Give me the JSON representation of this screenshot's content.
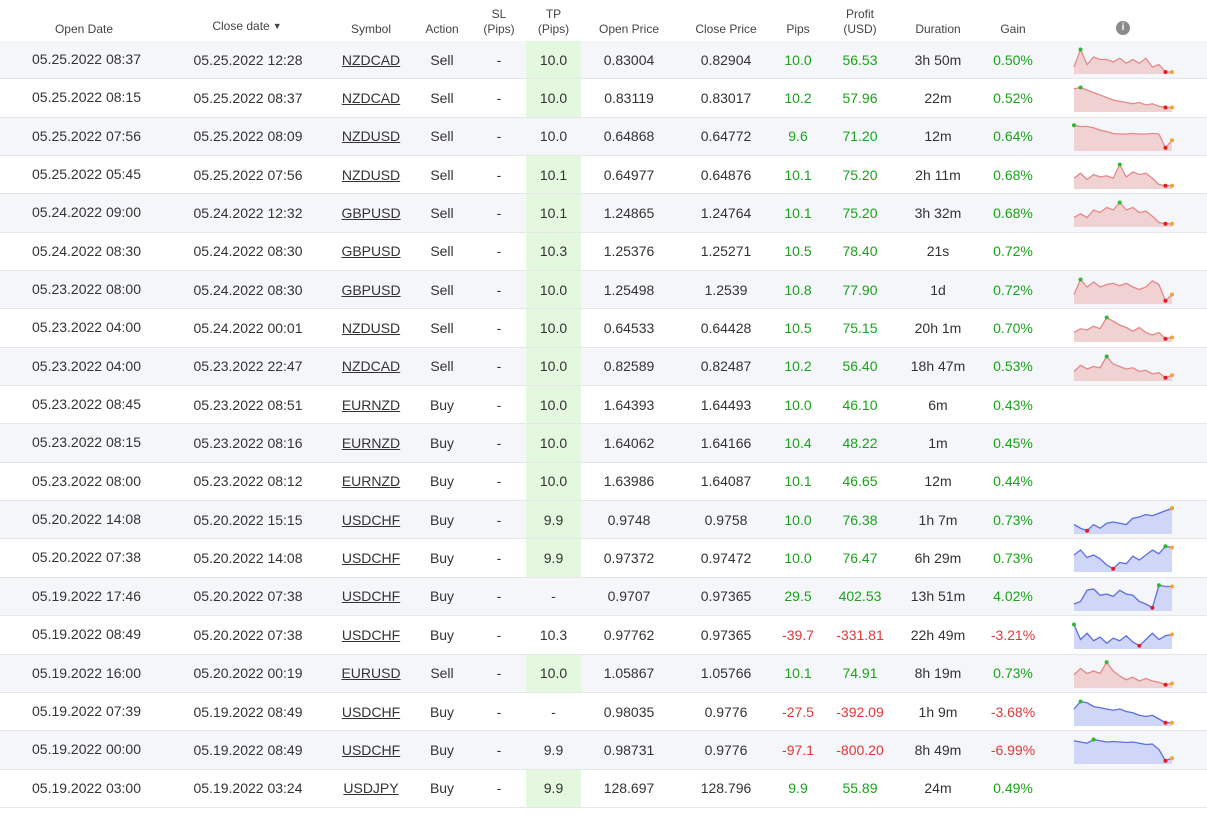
{
  "columns": {
    "open_date": "Open Date",
    "close_date": "Close date",
    "close_date_sort": "▼",
    "symbol": "Symbol",
    "action": "Action",
    "sl_line1": "SL",
    "sl_line2": "(Pips)",
    "tp_line1": "TP",
    "tp_line2": "(Pips)",
    "open_price": "Open Price",
    "close_price": "Close Price",
    "pips": "Pips",
    "profit_line1": "Profit",
    "profit_line2": "(USD)",
    "duration": "Duration",
    "gain": "Gain",
    "info_icon": "i"
  },
  "colors": {
    "positive": "#1aa31a",
    "negative": "#e03838",
    "tp_highlight": "#e3f8df",
    "sell_fill": "#f1d2d2",
    "sell_line": "#e48989",
    "buy_fill": "#cfd6f7",
    "buy_line": "#5b6fe0"
  },
  "rows": [
    {
      "open": "05.25.2022 08:37",
      "close": "05.25.2022 12:28",
      "symbol": "NZDCAD",
      "action": "Sell",
      "sl": "-",
      "tp": "10.0",
      "tp_hl": true,
      "open_price": "0.83004",
      "close_price": "0.82904",
      "pips": "10.0",
      "profit": "56.53",
      "duration": "3h 50m",
      "gain": "0.50%",
      "sign": "pos",
      "spark": [
        0.2,
        0.9,
        0.3,
        0.6,
        0.5,
        0.5,
        0.4,
        0.55,
        0.35,
        0.5,
        0.35,
        0.55,
        0.2,
        0.3,
        -0.2,
        0.0
      ]
    },
    {
      "open": "05.25.2022 08:15",
      "close": "05.25.2022 08:37",
      "symbol": "NZDCAD",
      "action": "Sell",
      "sl": "-",
      "tp": "10.0",
      "tp_hl": true,
      "open_price": "0.83119",
      "close_price": "0.83017",
      "pips": "10.2",
      "profit": "57.96",
      "duration": "22m",
      "gain": "0.52%",
      "sign": "pos",
      "spark": [
        0.85,
        0.9,
        0.8,
        0.7,
        0.6,
        0.5,
        0.4,
        0.35,
        0.3,
        0.25,
        0.3,
        0.2,
        0.25,
        0.15,
        0.1,
        0.1
      ]
    },
    {
      "open": "05.25.2022 07:56",
      "close": "05.25.2022 08:09",
      "symbol": "NZDUSD",
      "action": "Sell",
      "sl": "-",
      "tp": "10.0",
      "tp_hl": false,
      "open_price": "0.64868",
      "close_price": "0.64772",
      "pips": "9.6",
      "profit": "71.20",
      "duration": "12m",
      "gain": "0.64%",
      "sign": "pos",
      "spark": [
        0.95,
        0.9,
        0.9,
        0.85,
        0.75,
        0.7,
        0.62,
        0.6,
        0.6,
        0.62,
        0.6,
        0.6,
        0.62,
        0.6,
        0.05,
        0.35
      ]
    },
    {
      "open": "05.25.2022 05:45",
      "close": "05.25.2022 07:56",
      "symbol": "NZDUSD",
      "action": "Sell",
      "sl": "-",
      "tp": "10.1",
      "tp_hl": true,
      "open_price": "0.64977",
      "close_price": "0.64876",
      "pips": "10.1",
      "profit": "75.20",
      "duration": "2h 11m",
      "gain": "0.68%",
      "sign": "pos",
      "spark": [
        0.35,
        0.55,
        0.3,
        0.5,
        0.4,
        0.45,
        0.35,
        0.9,
        0.4,
        0.6,
        0.5,
        0.55,
        0.35,
        0.1,
        0.05,
        0.05
      ]
    },
    {
      "open": "05.24.2022 09:00",
      "close": "05.24.2022 12:32",
      "symbol": "GBPUSD",
      "action": "Sell",
      "sl": "-",
      "tp": "10.1",
      "tp_hl": true,
      "open_price": "1.24865",
      "close_price": "1.24764",
      "pips": "10.1",
      "profit": "75.20",
      "duration": "3h 32m",
      "gain": "0.68%",
      "sign": "pos",
      "spark": [
        0.3,
        0.45,
        0.3,
        0.6,
        0.5,
        0.7,
        0.6,
        0.9,
        0.6,
        0.7,
        0.5,
        0.55,
        0.35,
        0.1,
        0.05,
        0.05
      ]
    },
    {
      "open": "05.24.2022 08:30",
      "close": "05.24.2022 08:30",
      "symbol": "GBPUSD",
      "action": "Sell",
      "sl": "-",
      "tp": "10.3",
      "tp_hl": true,
      "open_price": "1.25376",
      "close_price": "1.25271",
      "pips": "10.5",
      "profit": "78.40",
      "duration": "21s",
      "gain": "0.72%",
      "sign": "pos",
      "spark": null
    },
    {
      "open": "05.23.2022 08:00",
      "close": "05.24.2022 08:30",
      "symbol": "GBPUSD",
      "action": "Sell",
      "sl": "-",
      "tp": "10.0",
      "tp_hl": true,
      "open_price": "1.25498",
      "close_price": "1.2539",
      "pips": "10.8",
      "profit": "77.90",
      "duration": "1d",
      "gain": "0.72%",
      "sign": "pos",
      "spark": [
        0.3,
        0.9,
        0.6,
        0.8,
        0.6,
        0.7,
        0.75,
        0.65,
        0.75,
        0.6,
        0.5,
        0.6,
        0.85,
        0.7,
        0.05,
        0.3
      ]
    },
    {
      "open": "05.23.2022 04:00",
      "close": "05.24.2022 00:01",
      "symbol": "NZDUSD",
      "action": "Sell",
      "sl": "-",
      "tp": "10.0",
      "tp_hl": true,
      "open_price": "0.64533",
      "close_price": "0.64428",
      "pips": "10.5",
      "profit": "75.15",
      "duration": "20h 1m",
      "gain": "0.70%",
      "sign": "pos",
      "spark": [
        0.3,
        0.45,
        0.4,
        0.55,
        0.45,
        0.9,
        0.75,
        0.6,
        0.5,
        0.35,
        0.5,
        0.3,
        0.2,
        0.3,
        0.05,
        0.1
      ]
    },
    {
      "open": "05.23.2022 04:00",
      "close": "05.23.2022 22:47",
      "symbol": "NZDCAD",
      "action": "Sell",
      "sl": "-",
      "tp": "10.0",
      "tp_hl": true,
      "open_price": "0.82589",
      "close_price": "0.82487",
      "pips": "10.2",
      "profit": "56.40",
      "duration": "18h 47m",
      "gain": "0.53%",
      "sign": "pos",
      "spark": [
        0.3,
        0.55,
        0.4,
        0.5,
        0.45,
        0.9,
        0.6,
        0.5,
        0.4,
        0.45,
        0.3,
        0.35,
        0.2,
        0.25,
        0.05,
        0.15
      ]
    },
    {
      "open": "05.23.2022 08:45",
      "close": "05.23.2022 08:51",
      "symbol": "EURNZD",
      "action": "Buy",
      "sl": "-",
      "tp": "10.0",
      "tp_hl": true,
      "open_price": "1.64393",
      "close_price": "1.64493",
      "pips": "10.0",
      "profit": "46.10",
      "duration": "6m",
      "gain": "0.43%",
      "sign": "pos",
      "spark": null
    },
    {
      "open": "05.23.2022 08:15",
      "close": "05.23.2022 08:16",
      "symbol": "EURNZD",
      "action": "Buy",
      "sl": "-",
      "tp": "10.0",
      "tp_hl": true,
      "open_price": "1.64062",
      "close_price": "1.64166",
      "pips": "10.4",
      "profit": "48.22",
      "duration": "1m",
      "gain": "0.45%",
      "sign": "pos",
      "spark": null
    },
    {
      "open": "05.23.2022 08:00",
      "close": "05.23.2022 08:12",
      "symbol": "EURNZD",
      "action": "Buy",
      "sl": "-",
      "tp": "10.0",
      "tp_hl": true,
      "open_price": "1.63986",
      "close_price": "1.64087",
      "pips": "10.1",
      "profit": "46.65",
      "duration": "12m",
      "gain": "0.44%",
      "sign": "pos",
      "spark": null
    },
    {
      "open": "05.20.2022 14:08",
      "close": "05.20.2022 15:15",
      "symbol": "USDCHF",
      "action": "Buy",
      "sl": "-",
      "tp": "9.9",
      "tp_hl": true,
      "open_price": "0.9748",
      "close_price": "0.9758",
      "pips": "10.0",
      "profit": "76.38",
      "duration": "1h 7m",
      "gain": "0.73%",
      "sign": "pos",
      "spark": [
        0.3,
        0.15,
        0.05,
        0.3,
        0.15,
        0.35,
        0.4,
        0.35,
        0.3,
        0.55,
        0.6,
        0.7,
        0.65,
        0.75,
        0.85,
        0.95
      ]
    },
    {
      "open": "05.20.2022 07:38",
      "close": "05.20.2022 14:08",
      "symbol": "USDCHF",
      "action": "Buy",
      "sl": "-",
      "tp": "9.9",
      "tp_hl": true,
      "open_price": "0.97372",
      "close_price": "0.97472",
      "pips": "10.0",
      "profit": "76.47",
      "duration": "6h 29m",
      "gain": "0.73%",
      "sign": "pos",
      "spark": [
        0.6,
        0.8,
        0.5,
        0.6,
        0.45,
        0.2,
        0.05,
        0.3,
        0.25,
        0.55,
        0.4,
        0.6,
        0.8,
        0.65,
        0.95,
        0.9
      ]
    },
    {
      "open": "05.19.2022 17:46",
      "close": "05.20.2022 07:38",
      "symbol": "USDCHF",
      "action": "Buy",
      "sl": "-",
      "tp": "-",
      "tp_hl": false,
      "open_price": "0.9707",
      "close_price": "0.97365",
      "pips": "29.5",
      "profit": "402.53",
      "duration": "13h 51m",
      "gain": "4.02%",
      "sign": "pos",
      "spark": [
        0.2,
        0.3,
        0.75,
        0.8,
        0.55,
        0.6,
        0.5,
        0.75,
        0.6,
        0.55,
        0.3,
        0.2,
        0.05,
        0.95,
        0.9,
        0.9
      ]
    },
    {
      "open": "05.19.2022 08:49",
      "close": "05.20.2022 07:38",
      "symbol": "USDCHF",
      "action": "Buy",
      "sl": "-",
      "tp": "10.3",
      "tp_hl": false,
      "open_price": "0.97762",
      "close_price": "0.97365",
      "pips": "-39.7",
      "profit": "-331.81",
      "duration": "22h 49m",
      "gain": "-3.21%",
      "sign": "neg",
      "spark": [
        0.9,
        0.3,
        0.55,
        0.25,
        0.4,
        0.15,
        0.35,
        0.25,
        0.45,
        0.2,
        0.05,
        0.3,
        0.55,
        0.3,
        0.45,
        0.5
      ]
    },
    {
      "open": "05.19.2022 16:00",
      "close": "05.20.2022 00:19",
      "symbol": "EURUSD",
      "action": "Sell",
      "sl": "-",
      "tp": "10.0",
      "tp_hl": true,
      "open_price": "1.05867",
      "close_price": "1.05766",
      "pips": "10.1",
      "profit": "74.91",
      "duration": "8h 19m",
      "gain": "0.73%",
      "sign": "pos",
      "spark": [
        0.45,
        0.7,
        0.5,
        0.6,
        0.5,
        0.95,
        0.6,
        0.4,
        0.25,
        0.35,
        0.2,
        0.3,
        0.2,
        0.15,
        0.05,
        0.1
      ]
    },
    {
      "open": "05.19.2022 07:39",
      "close": "05.19.2022 08:49",
      "symbol": "USDCHF",
      "action": "Buy",
      "sl": "-",
      "tp": "-",
      "tp_hl": false,
      "open_price": "0.98035",
      "close_price": "0.9776",
      "pips": "-27.5",
      "profit": "-392.09",
      "duration": "1h 9m",
      "gain": "-3.68%",
      "sign": "neg",
      "spark": [
        0.6,
        0.9,
        0.85,
        0.7,
        0.65,
        0.6,
        0.55,
        0.6,
        0.5,
        0.45,
        0.35,
        0.3,
        0.35,
        0.2,
        0.05,
        0.05
      ]
    },
    {
      "open": "05.19.2022 00:00",
      "close": "05.19.2022 08:49",
      "symbol": "USDCHF",
      "action": "Buy",
      "sl": "-",
      "tp": "9.9",
      "tp_hl": false,
      "open_price": "0.98731",
      "close_price": "0.9776",
      "pips": "-97.1",
      "profit": "-800.20",
      "duration": "8h 49m",
      "gain": "-6.99%",
      "sign": "neg",
      "spark": [
        0.85,
        0.8,
        0.75,
        0.9,
        0.85,
        0.8,
        0.82,
        0.8,
        0.78,
        0.8,
        0.75,
        0.7,
        0.72,
        0.5,
        0.05,
        0.15
      ]
    },
    {
      "open": "05.19.2022 03:00",
      "close": "05.19.2022 03:24",
      "symbol": "USDJPY",
      "action": "Buy",
      "sl": "-",
      "tp": "9.9",
      "tp_hl": true,
      "open_price": "128.697",
      "close_price": "128.796",
      "pips": "9.9",
      "profit": "55.89",
      "duration": "24m",
      "gain": "0.49%",
      "sign": "pos",
      "spark": null
    }
  ]
}
